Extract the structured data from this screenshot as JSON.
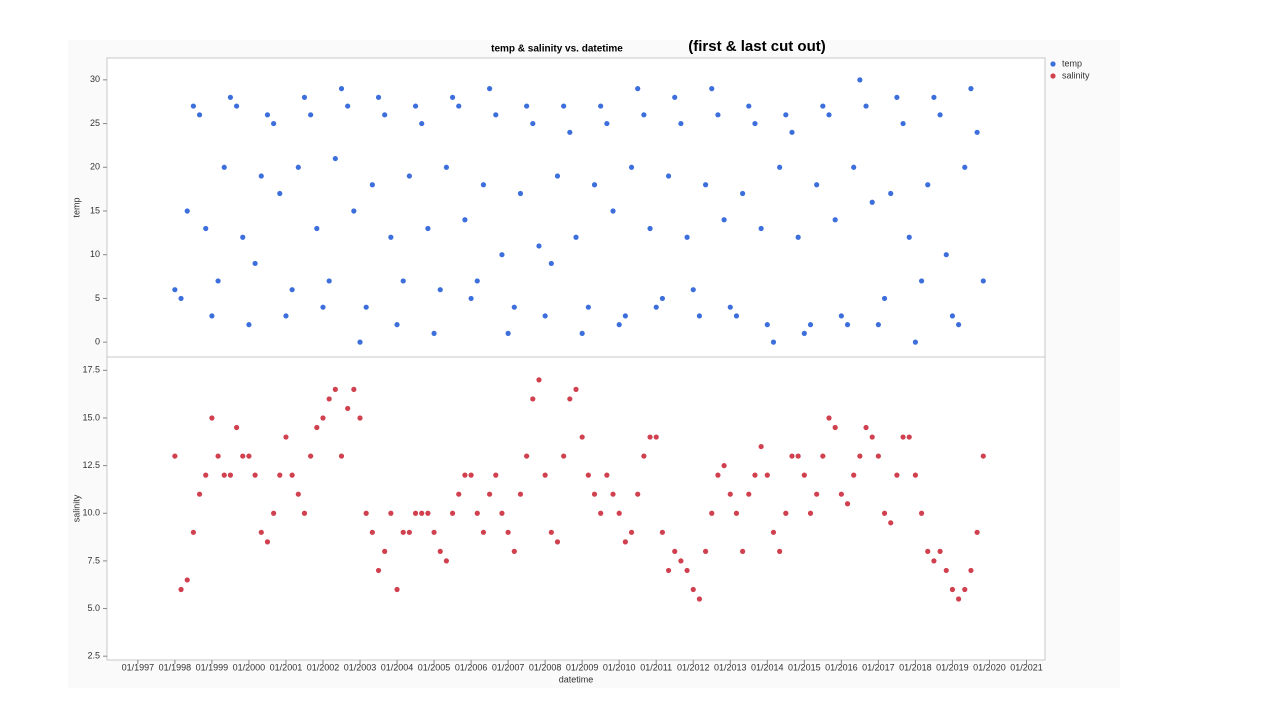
{
  "chart_data": {
    "type": "scatter",
    "title": "temp &  salinity vs.  datetime",
    "annotation": "(first & last cut out)",
    "x_label": "datetime",
    "xlim": [
      "1996-03",
      "2021-07"
    ],
    "xticks": [
      {
        "value": "1997-01",
        "label": "01/1997"
      },
      {
        "value": "1998-01",
        "label": "01/1998"
      },
      {
        "value": "1999-01",
        "label": "01/1999"
      },
      {
        "value": "2000-01",
        "label": "01/2000"
      },
      {
        "value": "2001-01",
        "label": "01/2001"
      },
      {
        "value": "2002-01",
        "label": "01/2002"
      },
      {
        "value": "2003-01",
        "label": "01/2003"
      },
      {
        "value": "2004-01",
        "label": "01/2004"
      },
      {
        "value": "2005-01",
        "label": "01/2005"
      },
      {
        "value": "2006-01",
        "label": "01/2006"
      },
      {
        "value": "2007-01",
        "label": "01/2007"
      },
      {
        "value": "2008-01",
        "label": "01/2008"
      },
      {
        "value": "2009-01",
        "label": "01/2009"
      },
      {
        "value": "2010-01",
        "label": "01/2010"
      },
      {
        "value": "2011-01",
        "label": "01/2011"
      },
      {
        "value": "2012-01",
        "label": "01/2012"
      },
      {
        "value": "2013-01",
        "label": "01/2013"
      },
      {
        "value": "2014-01",
        "label": "01/2014"
      },
      {
        "value": "2015-01",
        "label": "01/2015"
      },
      {
        "value": "2016-01",
        "label": "01/2016"
      },
      {
        "value": "2017-01",
        "label": "01/2017"
      },
      {
        "value": "2018-01",
        "label": "01/2018"
      },
      {
        "value": "2019-01",
        "label": "01/2019"
      },
      {
        "value": "2020-01",
        "label": "01/2020"
      },
      {
        "value": "2021-01",
        "label": "01/2021"
      }
    ],
    "x": [
      "1998-01",
      "1998-03",
      "1998-05",
      "1998-07",
      "1998-09",
      "1998-11",
      "1999-01",
      "1999-03",
      "1999-05",
      "1999-07",
      "1999-09",
      "1999-11",
      "2000-01",
      "2000-03",
      "2000-05",
      "2000-07",
      "2000-09",
      "2000-11",
      "2001-01",
      "2001-03",
      "2001-05",
      "2001-07",
      "2001-09",
      "2001-11",
      "2002-01",
      "2002-03",
      "2002-05",
      "2002-07",
      "2002-09",
      "2002-11",
      "2003-01",
      "2003-03",
      "2003-05",
      "2003-07",
      "2003-09",
      "2003-11",
      "2004-01",
      "2004-03",
      "2004-05",
      "2004-07",
      "2004-09",
      "2004-11",
      "2005-01",
      "2005-03",
      "2005-05",
      "2005-07",
      "2005-09",
      "2005-11",
      "2006-01",
      "2006-03",
      "2006-05",
      "2006-07",
      "2006-09",
      "2006-11",
      "2007-01",
      "2007-03",
      "2007-05",
      "2007-07",
      "2007-09",
      "2007-11",
      "2008-01",
      "2008-03",
      "2008-05",
      "2008-07",
      "2008-09",
      "2008-11",
      "2009-01",
      "2009-03",
      "2009-05",
      "2009-07",
      "2009-09",
      "2009-11",
      "2010-01",
      "2010-03",
      "2010-05",
      "2010-07",
      "2010-09",
      "2010-11",
      "2011-01",
      "2011-03",
      "2011-05",
      "2011-07",
      "2011-09",
      "2011-11",
      "2012-01",
      "2012-03",
      "2012-05",
      "2012-07",
      "2012-09",
      "2012-11",
      "2013-01",
      "2013-03",
      "2013-05",
      "2013-07",
      "2013-09",
      "2013-11",
      "2014-01",
      "2014-03",
      "2014-05",
      "2014-07",
      "2014-09",
      "2014-11",
      "2015-01",
      "2015-03",
      "2015-05",
      "2015-07",
      "2015-09",
      "2015-11",
      "2016-01",
      "2016-03",
      "2016-05",
      "2016-07",
      "2016-09",
      "2016-11",
      "2017-01",
      "2017-03",
      "2017-05",
      "2017-07",
      "2017-09",
      "2017-11",
      "2018-01",
      "2018-03",
      "2018-05",
      "2018-07",
      "2018-09",
      "2018-11",
      "2019-01",
      "2019-03",
      "2019-05",
      "2019-07",
      "2019-09",
      "2019-11"
    ],
    "series": [
      {
        "name": "temp",
        "color": "#3d6fdc",
        "y_label": "temp",
        "ylim": [
          -1.7,
          32.5
        ],
        "yticks": [
          0,
          5,
          10,
          15,
          20,
          25,
          30
        ],
        "values": [
          6,
          5,
          15,
          27,
          26,
          13,
          3,
          7,
          20,
          28,
          27,
          12,
          2,
          9,
          19,
          26,
          25,
          17,
          3,
          6,
          20,
          28,
          26,
          13,
          4,
          7,
          21,
          29,
          27,
          15,
          0,
          4,
          18,
          28,
          26,
          12,
          2,
          7,
          19,
          27,
          25,
          13,
          1,
          6,
          20,
          28,
          27,
          14,
          5,
          7,
          18,
          29,
          26,
          10,
          1,
          4,
          17,
          27,
          25,
          11,
          3,
          9,
          19,
          27,
          24,
          12,
          1,
          4,
          18,
          27,
          25,
          15,
          2,
          3,
          20,
          29,
          26,
          13,
          4,
          5,
          19,
          28,
          25,
          12,
          6,
          3,
          18,
          29,
          26,
          14,
          4,
          3,
          17,
          27,
          25,
          13,
          2,
          0,
          20,
          26,
          24,
          12,
          1,
          2,
          18,
          27,
          26,
          14,
          3,
          2,
          20,
          30,
          27,
          16,
          2,
          5,
          17,
          28,
          25,
          12,
          0,
          7,
          18,
          28,
          26,
          10,
          3,
          2,
          20,
          29,
          24,
          7
        ]
      },
      {
        "name": "salinity",
        "color": "#d0404e",
        "y_label": "salinity",
        "ylim": [
          2.3,
          18.2
        ],
        "yticks": [
          {
            "value": 2.5,
            "label": "2.5"
          },
          {
            "value": 5,
            "label": "5.0"
          },
          {
            "value": 7.5,
            "label": "7.5"
          },
          {
            "value": 10,
            "label": "10.0"
          },
          {
            "value": 12.5,
            "label": "12.5"
          },
          {
            "value": 15,
            "label": "15.0"
          },
          {
            "value": 17.5,
            "label": "17.5"
          }
        ],
        "values": [
          13,
          6,
          6.5,
          9,
          11,
          12,
          15,
          13,
          12,
          12,
          14.5,
          13,
          13,
          12,
          9,
          8.5,
          10,
          12,
          14,
          12,
          11,
          10,
          13,
          14.5,
          15,
          16,
          16.5,
          13,
          15.5,
          16.5,
          15,
          10,
          9,
          7,
          8,
          10,
          6,
          9,
          9,
          10,
          10,
          10,
          9,
          8,
          7.5,
          10,
          11,
          12,
          12,
          10,
          9,
          11,
          12,
          10,
          9,
          8,
          11,
          13,
          16,
          17,
          12,
          9,
          8.5,
          13,
          16,
          16.5,
          14,
          12,
          11,
          10,
          12,
          11,
          10,
          8.5,
          9,
          11,
          13,
          14,
          14,
          9,
          7,
          8,
          7.5,
          7,
          6,
          5.5,
          8,
          10,
          12,
          12.5,
          11,
          10,
          8,
          11,
          12,
          13.5,
          12,
          9,
          8,
          10,
          13,
          13,
          12,
          10,
          11,
          13,
          15,
          14.5,
          11,
          10.5,
          12,
          13,
          14.5,
          14,
          13,
          10,
          9.5,
          12,
          14,
          14,
          12,
          10,
          8,
          7.5,
          8,
          7,
          6,
          5.5,
          6,
          7,
          9,
          13
        ]
      }
    ]
  }
}
